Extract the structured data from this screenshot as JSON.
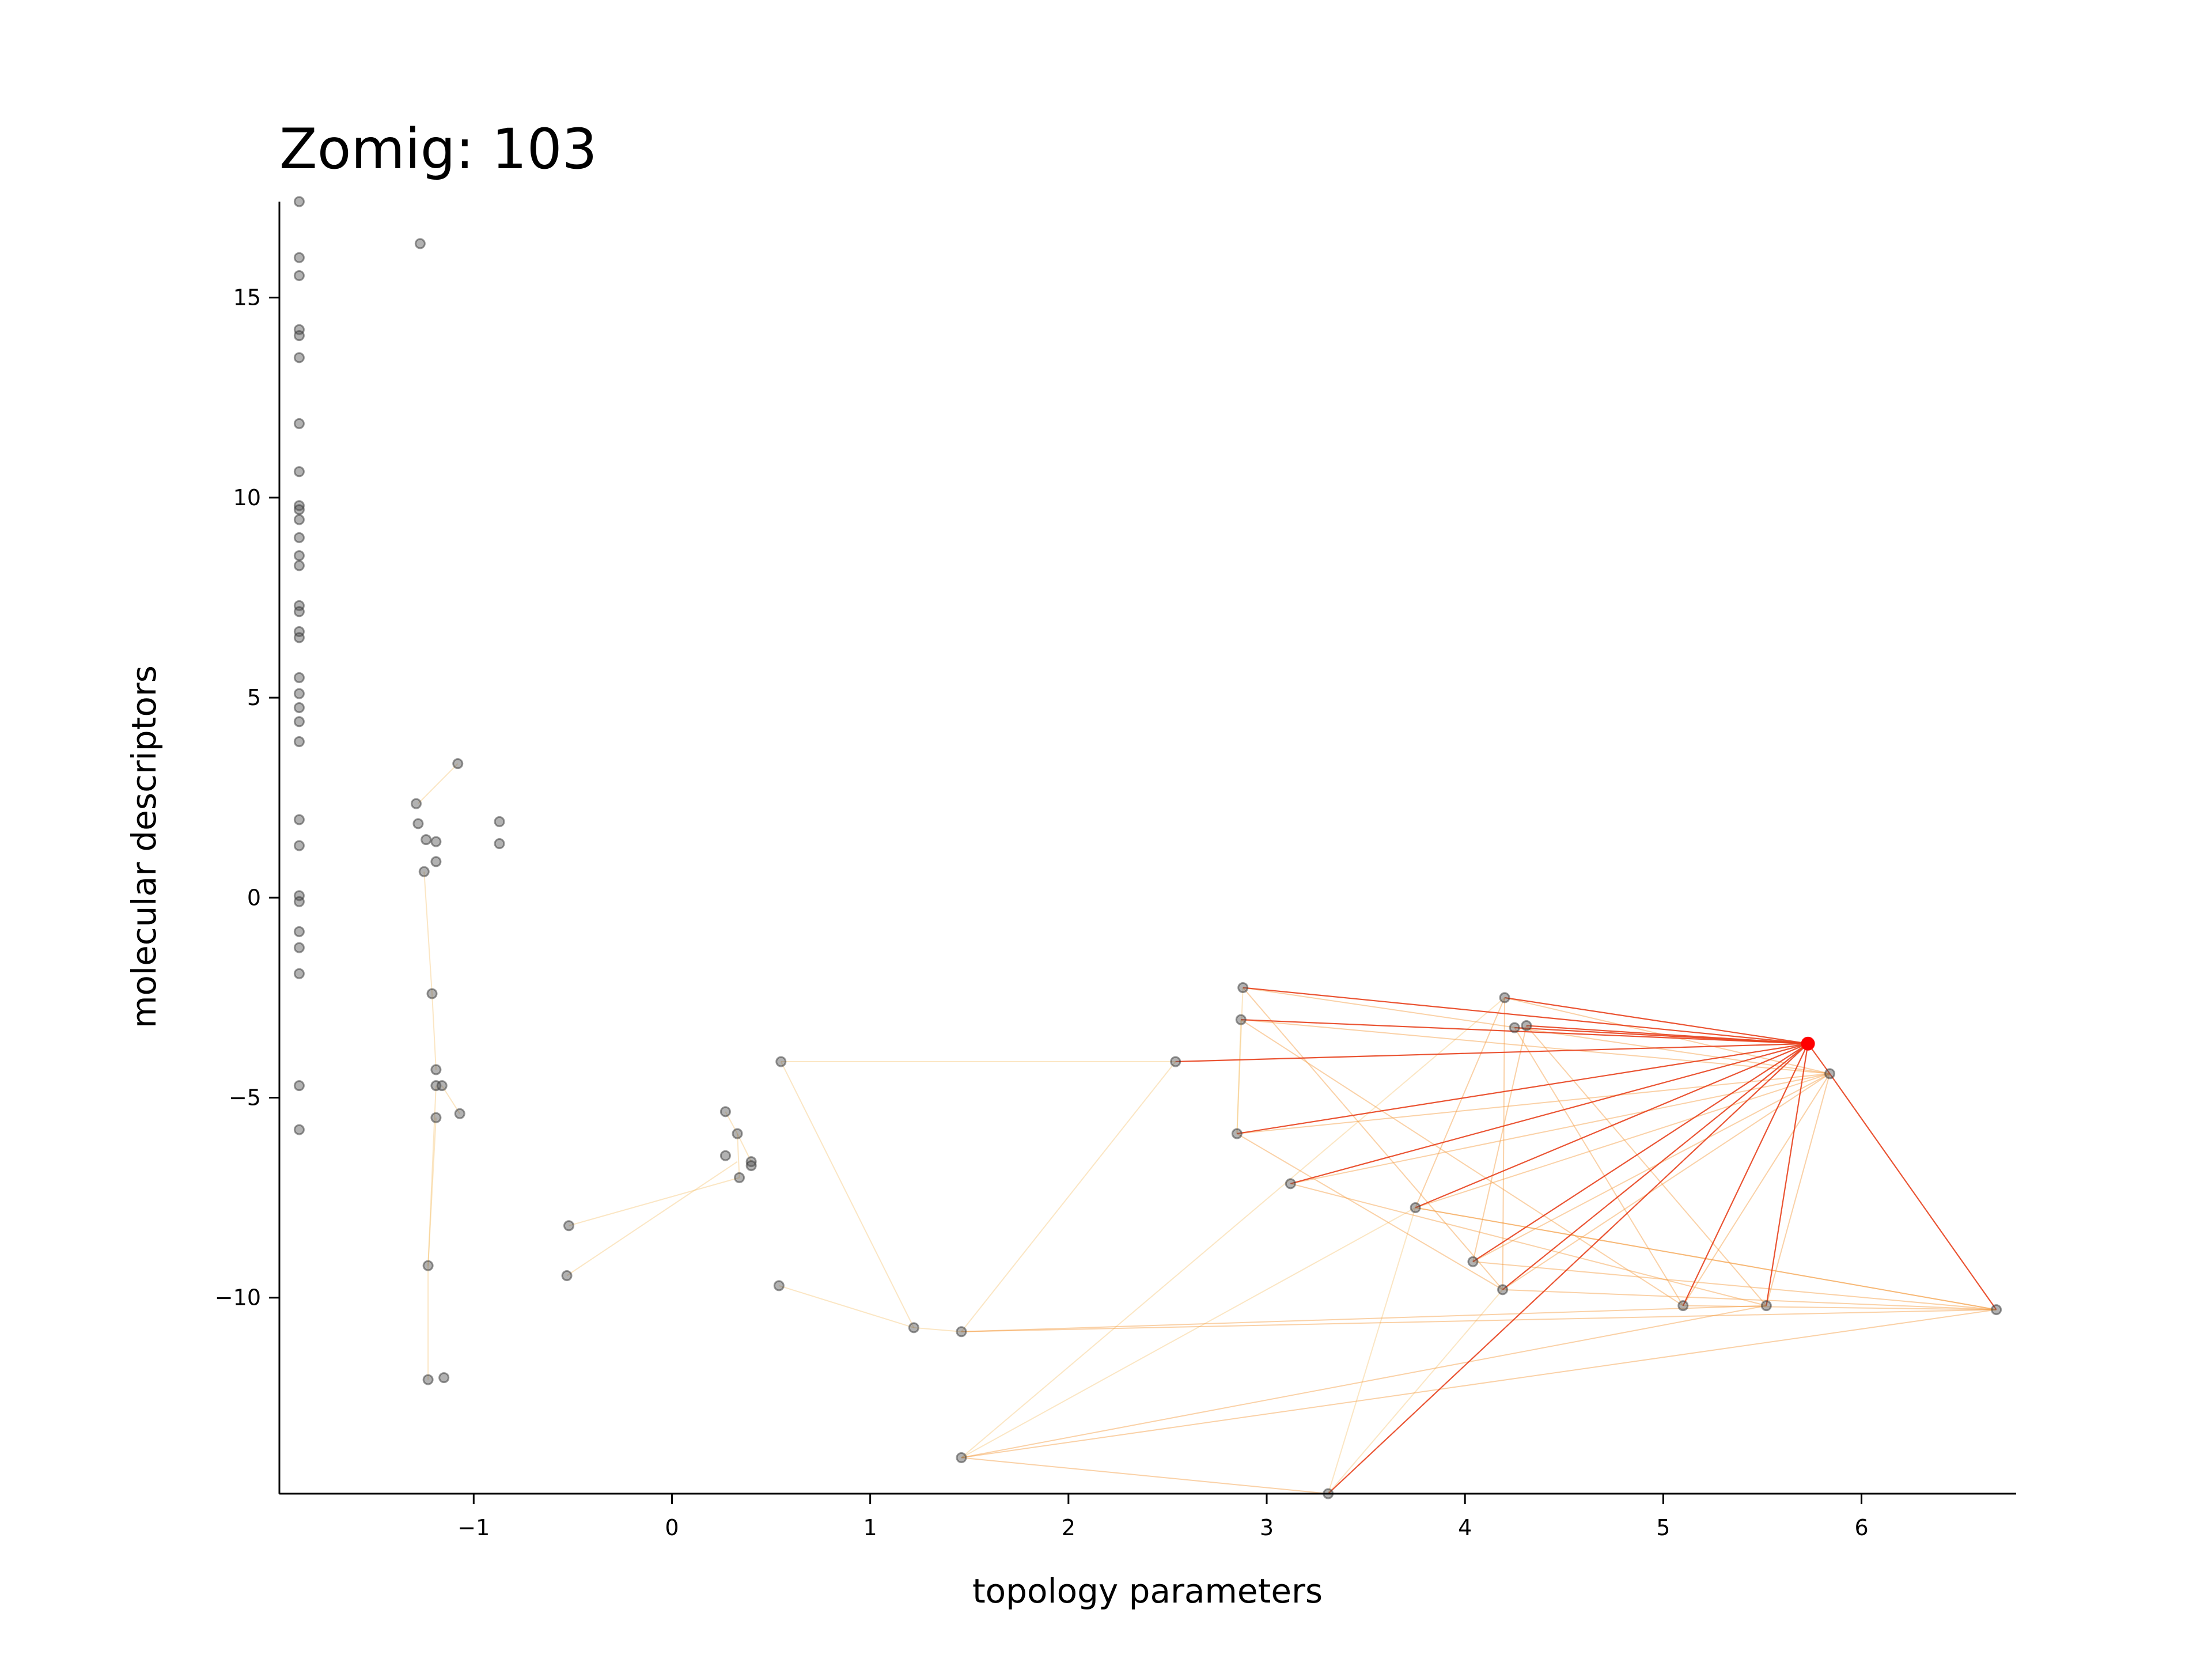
{
  "chart_data": {
    "type": "scatter",
    "title": "Zomig: 103",
    "xlabel": "topology parameters",
    "ylabel": "molecular descriptors",
    "xlim": [
      -1.98,
      6.78
    ],
    "ylim": [
      -14.9,
      17.4
    ],
    "xticks": [
      -1,
      0,
      1,
      2,
      3,
      4,
      5,
      6
    ],
    "yticks": [
      -10,
      -5,
      0,
      5,
      10,
      15
    ],
    "xtick_labels": [
      "−1",
      "0",
      "1",
      "2",
      "3",
      "4",
      "5",
      "6"
    ],
    "ytick_labels": [
      "−10",
      "−5",
      "0",
      "5",
      "10",
      "15"
    ],
    "grid": false,
    "point_color": "#555555",
    "highlight_color": "#ff0000",
    "highlight": {
      "x": 5.73,
      "y": -3.65
    },
    "points": [
      [
        -1.88,
        17.4
      ],
      [
        -1.88,
        16.0
      ],
      [
        -1.88,
        15.55
      ],
      [
        -1.88,
        14.2
      ],
      [
        -1.88,
        14.05
      ],
      [
        -1.88,
        13.5
      ],
      [
        -1.88,
        11.85
      ],
      [
        -1.88,
        10.65
      ],
      [
        -1.88,
        9.8
      ],
      [
        -1.88,
        9.7
      ],
      [
        -1.88,
        9.45
      ],
      [
        -1.88,
        9.0
      ],
      [
        -1.88,
        8.55
      ],
      [
        -1.88,
        8.3
      ],
      [
        -1.88,
        7.3
      ],
      [
        -1.88,
        7.15
      ],
      [
        -1.88,
        6.65
      ],
      [
        -1.88,
        6.5
      ],
      [
        -1.88,
        5.5
      ],
      [
        -1.88,
        5.1
      ],
      [
        -1.88,
        4.75
      ],
      [
        -1.88,
        4.4
      ],
      [
        -1.88,
        3.9
      ],
      [
        -1.88,
        1.95
      ],
      [
        -1.88,
        1.3
      ],
      [
        -1.88,
        0.05
      ],
      [
        -1.88,
        -0.1
      ],
      [
        -1.88,
        -0.85
      ],
      [
        -1.88,
        -1.25
      ],
      [
        -1.88,
        -1.9
      ],
      [
        -1.88,
        -4.7
      ],
      [
        -1.88,
        -5.8
      ],
      [
        -1.27,
        16.35
      ],
      [
        -1.29,
        2.35
      ],
      [
        -1.28,
        1.85
      ],
      [
        -1.24,
        1.45
      ],
      [
        -1.19,
        1.4
      ],
      [
        -1.19,
        0.9
      ],
      [
        -1.25,
        0.65
      ],
      [
        -1.08,
        3.35
      ],
      [
        -0.87,
        1.9
      ],
      [
        -0.87,
        1.35
      ],
      [
        -1.21,
        -2.4
      ],
      [
        -1.19,
        -4.3
      ],
      [
        -1.19,
        -4.7
      ],
      [
        -1.16,
        -4.7
      ],
      [
        -1.19,
        -5.5
      ],
      [
        -1.07,
        -5.4
      ],
      [
        -1.23,
        -9.2
      ],
      [
        -1.23,
        -12.05
      ],
      [
        -1.15,
        -12.0
      ],
      [
        -0.52,
        -8.2
      ],
      [
        -0.53,
        -9.45
      ],
      [
        0.27,
        -5.35
      ],
      [
        0.33,
        -5.9
      ],
      [
        0.27,
        -6.45
      ],
      [
        0.4,
        -6.6
      ],
      [
        0.4,
        -6.7
      ],
      [
        0.34,
        -7.0
      ],
      [
        0.55,
        -4.1
      ],
      [
        0.54,
        -9.7
      ],
      [
        1.22,
        -10.75
      ],
      [
        1.46,
        -10.85
      ],
      [
        1.46,
        -14.0
      ],
      [
        2.54,
        -4.1
      ],
      [
        2.88,
        -2.25
      ],
      [
        2.87,
        -3.05
      ],
      [
        2.85,
        -5.9
      ],
      [
        3.12,
        -7.15
      ],
      [
        3.31,
        -14.9
      ],
      [
        3.75,
        -7.75
      ],
      [
        4.04,
        -9.1
      ],
      [
        4.2,
        -2.5
      ],
      [
        4.25,
        -3.25
      ],
      [
        4.31,
        -3.2
      ],
      [
        4.19,
        -9.8
      ],
      [
        5.1,
        -10.2
      ],
      [
        5.52,
        -10.2
      ],
      [
        5.84,
        -4.4
      ],
      [
        6.68,
        -10.3
      ]
    ],
    "edges_primary": [
      [
        5.73,
        -3.65,
        4.2,
        -2.5
      ],
      [
        5.73,
        -3.65,
        2.88,
        -2.25
      ],
      [
        5.73,
        -3.65,
        2.87,
        -3.05
      ],
      [
        5.73,
        -3.65,
        4.25,
        -3.25
      ],
      [
        5.73,
        -3.65,
        4.31,
        -3.2
      ],
      [
        5.73,
        -3.65,
        2.54,
        -4.1
      ],
      [
        5.73,
        -3.65,
        2.85,
        -5.9
      ],
      [
        5.73,
        -3.65,
        3.12,
        -7.15
      ],
      [
        5.73,
        -3.65,
        3.75,
        -7.75
      ],
      [
        5.73,
        -3.65,
        4.04,
        -9.1
      ],
      [
        5.73,
        -3.65,
        4.19,
        -9.8
      ],
      [
        5.73,
        -3.65,
        5.1,
        -10.2
      ],
      [
        5.73,
        -3.65,
        5.52,
        -10.2
      ],
      [
        5.73,
        -3.65,
        3.31,
        -14.9
      ],
      [
        5.73,
        -3.65,
        5.84,
        -4.4
      ],
      [
        5.84,
        -4.4,
        6.68,
        -10.3
      ]
    ],
    "edges_secondary": [
      [
        5.84,
        -4.4,
        2.88,
        -2.25
      ],
      [
        5.84,
        -4.4,
        2.87,
        -3.05
      ],
      [
        5.84,
        -4.4,
        4.2,
        -2.5
      ],
      [
        5.84,
        -4.4,
        2.85,
        -5.9
      ],
      [
        5.84,
        -4.4,
        3.12,
        -7.15
      ],
      [
        5.84,
        -4.4,
        3.75,
        -7.75
      ],
      [
        5.84,
        -4.4,
        4.04,
        -9.1
      ],
      [
        5.84,
        -4.4,
        4.19,
        -9.8
      ],
      [
        5.84,
        -4.4,
        5.1,
        -10.2
      ],
      [
        5.84,
        -4.4,
        5.52,
        -10.2
      ],
      [
        6.68,
        -10.3,
        4.19,
        -9.8
      ],
      [
        6.68,
        -10.3,
        4.04,
        -9.1
      ],
      [
        6.68,
        -10.3,
        3.75,
        -7.75
      ],
      [
        6.68,
        -10.3,
        5.1,
        -10.2
      ],
      [
        4.2,
        -2.5,
        4.19,
        -9.8
      ],
      [
        4.25,
        -3.25,
        5.1,
        -10.2
      ],
      [
        4.31,
        -3.2,
        5.52,
        -10.2
      ],
      [
        2.88,
        -2.25,
        4.19,
        -9.8
      ],
      [
        2.87,
        -3.05,
        5.1,
        -10.2
      ],
      [
        3.12,
        -7.15,
        5.52,
        -10.2
      ],
      [
        2.85,
        -5.9,
        4.19,
        -9.8
      ],
      [
        3.75,
        -7.75,
        6.68,
        -10.3
      ],
      [
        4.2,
        -2.5,
        3.75,
        -7.75
      ],
      [
        4.31,
        -3.2,
        4.04,
        -9.1
      ],
      [
        1.46,
        -14.0,
        5.52,
        -10.2
      ],
      [
        1.46,
        -14.0,
        6.68,
        -10.3
      ],
      [
        1.46,
        -14.0,
        3.31,
        -14.9
      ],
      [
        1.46,
        -10.85,
        6.68,
        -10.3
      ],
      [
        1.46,
        -10.85,
        5.52,
        -10.2
      ]
    ],
    "edges_faint": [
      [
        0.55,
        -4.1,
        2.54,
        -4.1
      ],
      [
        0.55,
        -4.1,
        1.22,
        -10.75
      ],
      [
        2.54,
        -4.1,
        1.46,
        -10.85
      ],
      [
        0.54,
        -9.7,
        1.22,
        -10.75
      ],
      [
        1.22,
        -10.75,
        1.46,
        -10.85
      ],
      [
        -0.52,
        -8.2,
        0.34,
        -7.0
      ],
      [
        -0.53,
        -9.45,
        0.33,
        -6.6
      ],
      [
        0.33,
        -5.9,
        0.34,
        -7.0
      ],
      [
        0.27,
        -5.35,
        0.33,
        -5.9
      ],
      [
        0.33,
        -5.9,
        0.4,
        -6.6
      ],
      [
        -1.08,
        3.35,
        -1.28,
        2.35
      ],
      [
        -1.25,
        0.65,
        -1.21,
        -2.4
      ],
      [
        -1.21,
        -2.4,
        -1.19,
        -4.3
      ],
      [
        -1.19,
        -4.7,
        -1.23,
        -9.2
      ],
      [
        -1.23,
        -9.2,
        -1.23,
        -12.05
      ],
      [
        -1.07,
        -5.4,
        -1.16,
        -4.7
      ],
      [
        -1.19,
        -5.5,
        -1.23,
        -9.2
      ],
      [
        1.46,
        -14.0,
        4.2,
        -2.5
      ],
      [
        1.46,
        -14.0,
        3.75,
        -7.75
      ],
      [
        3.31,
        -14.9,
        4.19,
        -9.8
      ],
      [
        3.31,
        -14.9,
        3.75,
        -7.75
      ],
      [
        2.88,
        -2.25,
        2.85,
        -5.9
      ],
      [
        2.87,
        -3.05,
        2.85,
        -5.9
      ]
    ]
  }
}
